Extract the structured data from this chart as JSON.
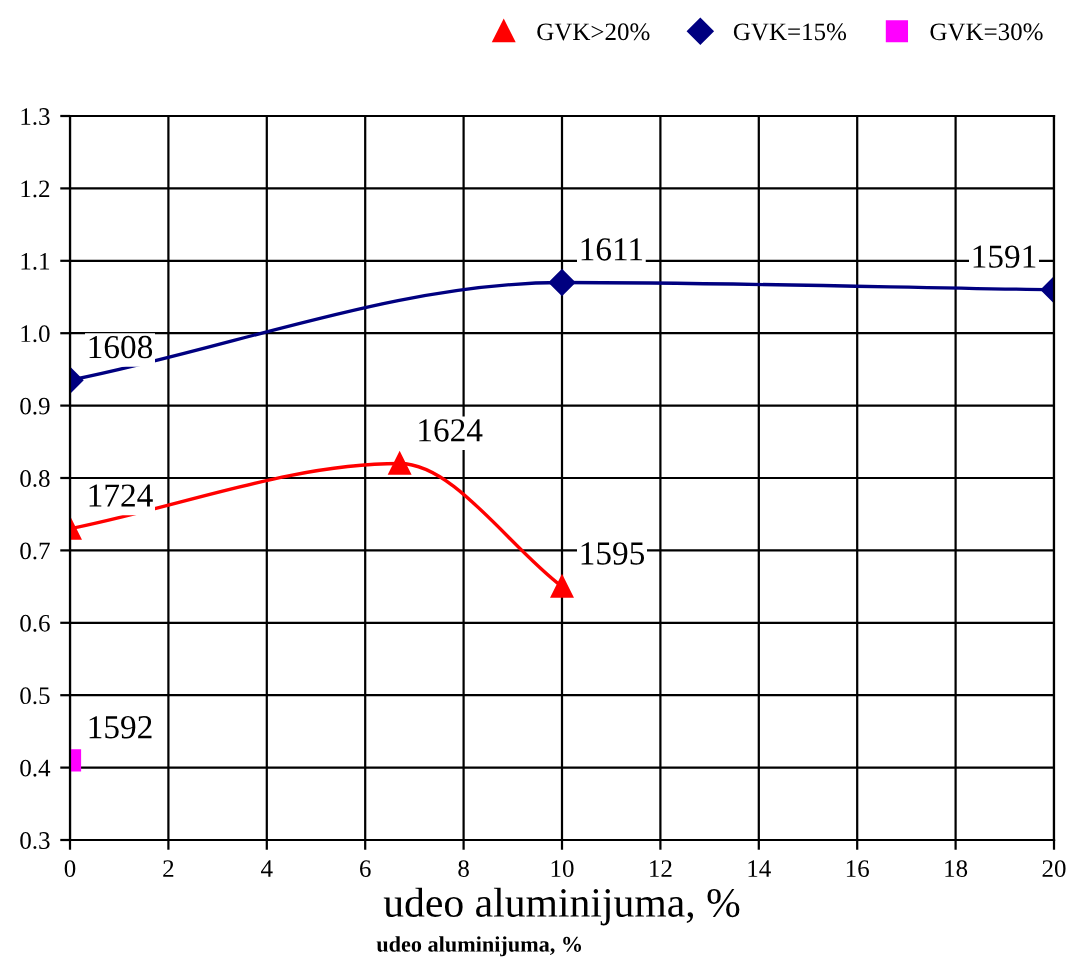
{
  "chart_data": {
    "type": "line",
    "xlabel": "udeo aluminijuma, %",
    "series": [
      {
        "name": "GVK>20%",
        "color": "#ff0000",
        "marker": "triangle",
        "x": [
          0,
          6.7,
          10
        ],
        "values": [
          0.73,
          0.82,
          0.65
        ]
      },
      {
        "name": "GVK=15%",
        "color": "#000080",
        "marker": "diamond",
        "x": [
          0,
          10,
          20
        ],
        "values": [
          0.935,
          1.07,
          1.06
        ]
      },
      {
        "name": "GVK=30%",
        "color": "#ff00ff",
        "marker": "square",
        "x": [
          0
        ],
        "values": [
          0.41
        ]
      }
    ],
    "annotations": [
      {
        "text": "1724",
        "x": 0,
        "y": 0.73
      },
      {
        "text": "1624",
        "x": 6.7,
        "y": 0.82
      },
      {
        "text": "1595",
        "x": 10,
        "y": 0.65
      },
      {
        "text": "1608",
        "x": 0,
        "y": 0.935
      },
      {
        "text": "1611",
        "x": 10,
        "y": 1.07
      },
      {
        "text": "1591",
        "x": 20,
        "y": 1.06
      },
      {
        "text": "1592",
        "x": 0,
        "y": 0.41
      },
      "udeo aluminijuma, %"
    ],
    "xlim": [
      0,
      20
    ],
    "xticks": [
      0,
      2,
      4,
      6,
      8,
      10,
      12,
      14,
      16,
      18,
      20
    ],
    "ylim": [
      0.3,
      1.3
    ],
    "yticks": [
      0.3,
      0.4,
      0.5,
      0.6,
      0.7,
      0.8,
      0.9,
      {
        "value": 1.0,
        "label": "1.0"
      },
      1.1,
      1.2,
      1.3
    ],
    "grid": true,
    "legend": "top right"
  }
}
